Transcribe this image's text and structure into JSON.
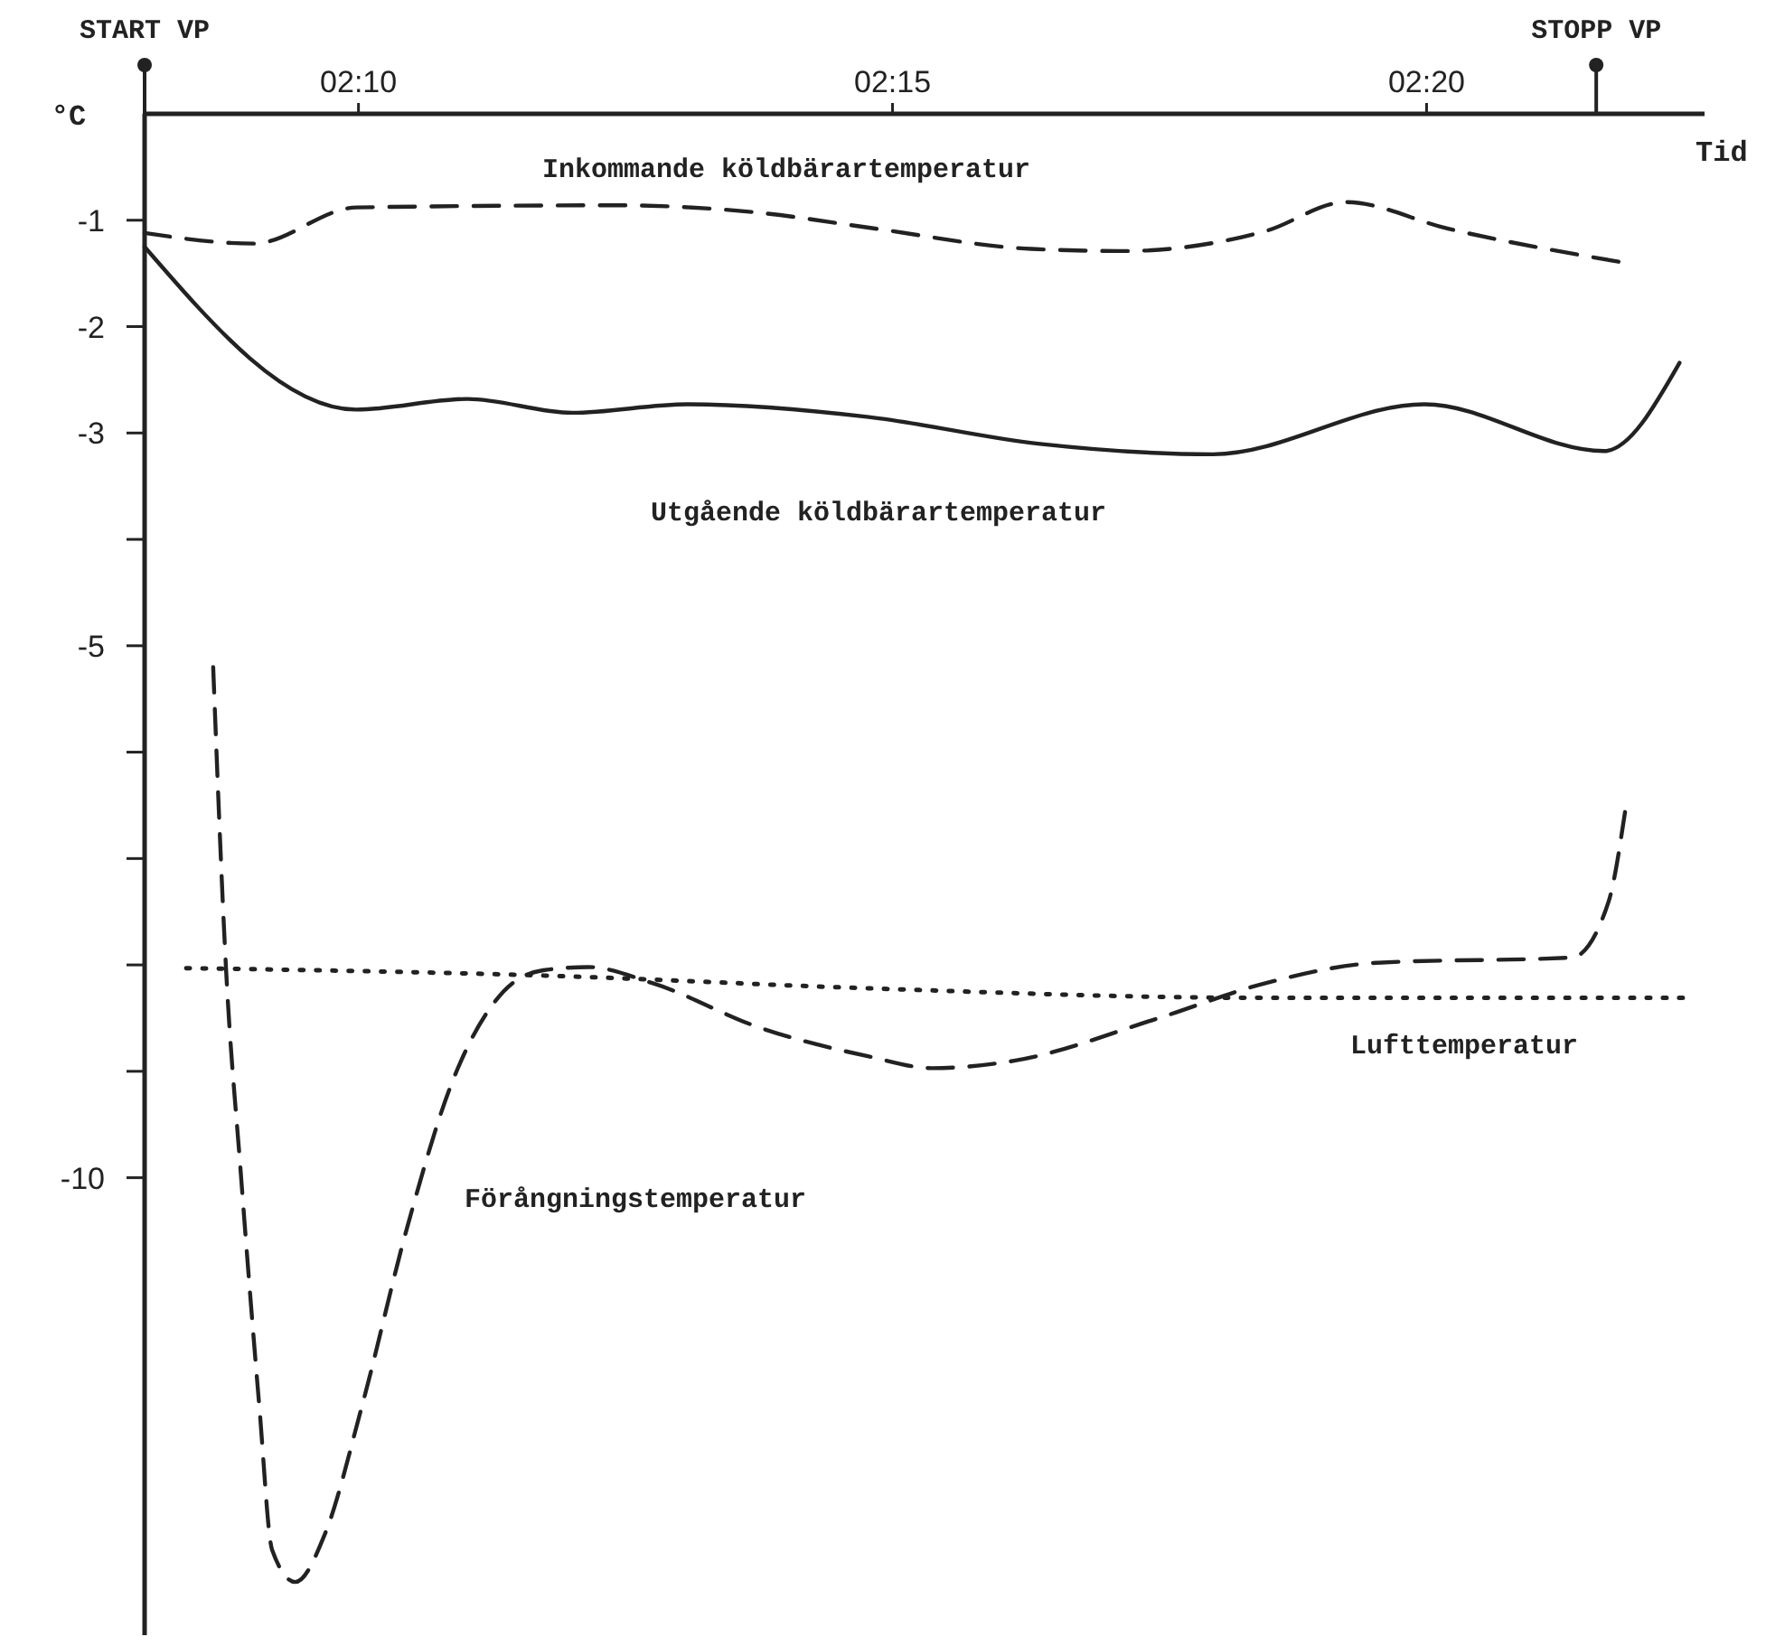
{
  "chart_data": {
    "type": "line",
    "xlabel": "Tid",
    "ylabel": "°C",
    "xlim": [
      2.1333,
      2.3767
    ],
    "ylim": [
      -14.3,
      0
    ],
    "xticks": [
      {
        "value": 2.16667,
        "label": "02:10"
      },
      {
        "value": 2.25,
        "label": "02:15"
      },
      {
        "value": 2.33333,
        "label": "02:20"
      }
    ],
    "yticks": [
      {
        "value": -1,
        "label": "-1"
      },
      {
        "value": -2,
        "label": "-2"
      },
      {
        "value": -3,
        "label": "-3"
      },
      {
        "value": -4,
        "label": null
      },
      {
        "value": -5,
        "label": "-5"
      },
      {
        "value": -6,
        "label": null
      },
      {
        "value": -7,
        "label": null
      },
      {
        "value": -8,
        "label": null
      },
      {
        "value": -9,
        "label": null
      },
      {
        "value": -10,
        "label": "-10"
      }
    ],
    "ref_lines": [
      {
        "axis": "x",
        "value": 2.1333,
        "label": "START VP"
      },
      {
        "axis": "x",
        "value": 2.3598,
        "label": "STOPP VP"
      }
    ],
    "series": [
      {
        "name": "Inkommande köldbärartemperatur",
        "color": "#222222",
        "line_style": "dashed",
        "x": [
          2.1333,
          2.1503,
          2.1663,
          2.2067,
          2.2293,
          2.2463,
          2.2717,
          2.2858,
          2.3083,
          2.3207,
          2.3367,
          2.3633
        ],
        "values": [
          -1.12,
          -1.22,
          -0.88,
          -0.86,
          -0.93,
          -1.07,
          -1.27,
          -1.29,
          -1.1,
          -0.83,
          -1.08,
          -1.39
        ]
      },
      {
        "name": "Utgående köldbärartemperatur",
        "color": "#222222",
        "line_style": "solid",
        "x": [
          2.1333,
          2.1663,
          2.1837,
          2.2,
          2.218,
          2.2463,
          2.2727,
          2.3,
          2.333,
          2.361,
          2.3728
        ],
        "values": [
          -1.25,
          -2.78,
          -2.68,
          -2.81,
          -2.73,
          -2.85,
          -3.1,
          -3.2,
          -2.73,
          -3.17,
          -2.34
        ]
      },
      {
        "name": "Förångningstemperatur",
        "color": "#222222",
        "line_style": "dashed",
        "x": [
          2.144,
          2.146,
          2.1483,
          2.1512,
          2.1532,
          2.1568,
          2.1615,
          2.1672,
          2.1743,
          2.1813,
          2.1893,
          2.1955,
          2.2025,
          2.2125,
          2.2293,
          2.2463,
          2.2562,
          2.269,
          2.2915,
          2.3083,
          2.3255,
          2.356,
          2.3617,
          2.3643
        ],
        "values": [
          -5.2,
          -8.03,
          -9.95,
          -12.15,
          -13.5,
          -13.8,
          -13.34,
          -12.15,
          -10.46,
          -9.1,
          -8.25,
          -8.05,
          -8.02,
          -8.17,
          -8.59,
          -8.86,
          -8.97,
          -8.9,
          -8.5,
          -8.17,
          -7.98,
          -7.93,
          -7.41,
          -6.56
        ]
      },
      {
        "name": "Lufttemperatur",
        "color": "#222222",
        "line_style": "dotted",
        "x": [
          2.1398,
          2.1955,
          2.2463,
          2.3083,
          2.3733
        ],
        "values": [
          -8.03,
          -8.1,
          -8.22,
          -8.31,
          -8.31
        ]
      }
    ]
  }
}
